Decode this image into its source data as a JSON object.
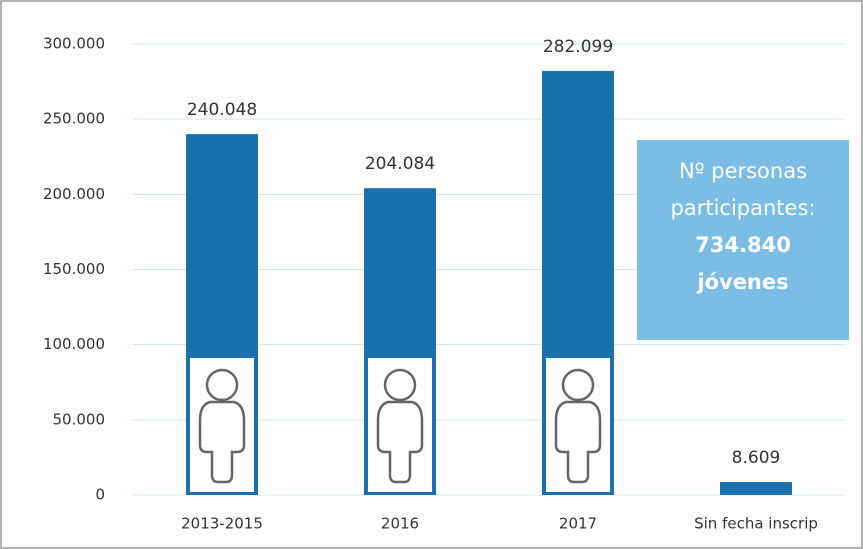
{
  "chart_data": {
    "type": "bar",
    "categories": [
      "2013-2015",
      "2016",
      "2017",
      "Sin fecha inscrip"
    ],
    "values": [
      240048,
      204084,
      282099,
      8609
    ],
    "value_labels": [
      "240.048",
      "204.084",
      "282.099",
      "8.609"
    ],
    "color": "#1a71ad",
    "ylim": [
      0,
      300000
    ],
    "yticks": [
      0,
      {
        "value": 50000,
        "label": "50.000"
      },
      {
        "value": 100000,
        "label": "100.000"
      },
      {
        "value": 150000,
        "label": "150.000"
      },
      {
        "value": 200000,
        "label": "200.000"
      },
      {
        "value": 250000,
        "label": "250.000"
      },
      {
        "value": 300000,
        "label": "300.000"
      }
    ],
    "grid": true,
    "annotation": {
      "lines": [
        "Nº personas",
        "participantes:",
        "734.840",
        "jóvenes"
      ]
    }
  }
}
